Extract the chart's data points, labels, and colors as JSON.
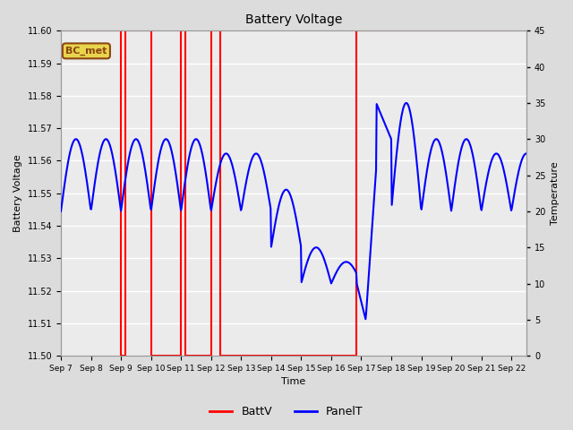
{
  "title": "Battery Voltage",
  "xlabel": "Time",
  "ylabel_left": "Battery Voltage",
  "ylabel_right": "Temperature",
  "ylim_left": [
    11.5,
    11.6
  ],
  "ylim_right": [
    0,
    45
  ],
  "yticks_left": [
    11.5,
    11.51,
    11.52,
    11.53,
    11.54,
    11.55,
    11.56,
    11.57,
    11.58,
    11.59,
    11.6
  ],
  "yticks_right": [
    0,
    5,
    10,
    15,
    20,
    25,
    30,
    35,
    40,
    45
  ],
  "xlim": [
    0,
    15.5
  ],
  "xtick_labels": [
    "Sep 7",
    "Sep 8",
    "Sep 9",
    "Sep 10",
    "Sep 11",
    "Sep 12",
    "Sep 13",
    "Sep 14",
    "Sep 15",
    "Sep 16",
    "Sep 17",
    "Sep 18",
    "Sep 19",
    "Sep 20",
    "Sep 21",
    "Sep 22"
  ],
  "xtick_positions": [
    0,
    1,
    2,
    3,
    4,
    5,
    6,
    7,
    8,
    9,
    10,
    11,
    12,
    13,
    14,
    15
  ],
  "bg_color": "#dcdcdc",
  "plot_bg_color": "#ebebeb",
  "grid_color": "#ffffff",
  "annotation_label": "BC_met",
  "annotation_bg": "#e8d44d",
  "annotation_border": "#8b4513",
  "red_line_color": "#ff0000",
  "blue_line_color": "#0000ff",
  "legend_entries": [
    "BattV",
    "PanelT"
  ],
  "legend_colors": [
    "#ff0000",
    "#0000ff"
  ]
}
